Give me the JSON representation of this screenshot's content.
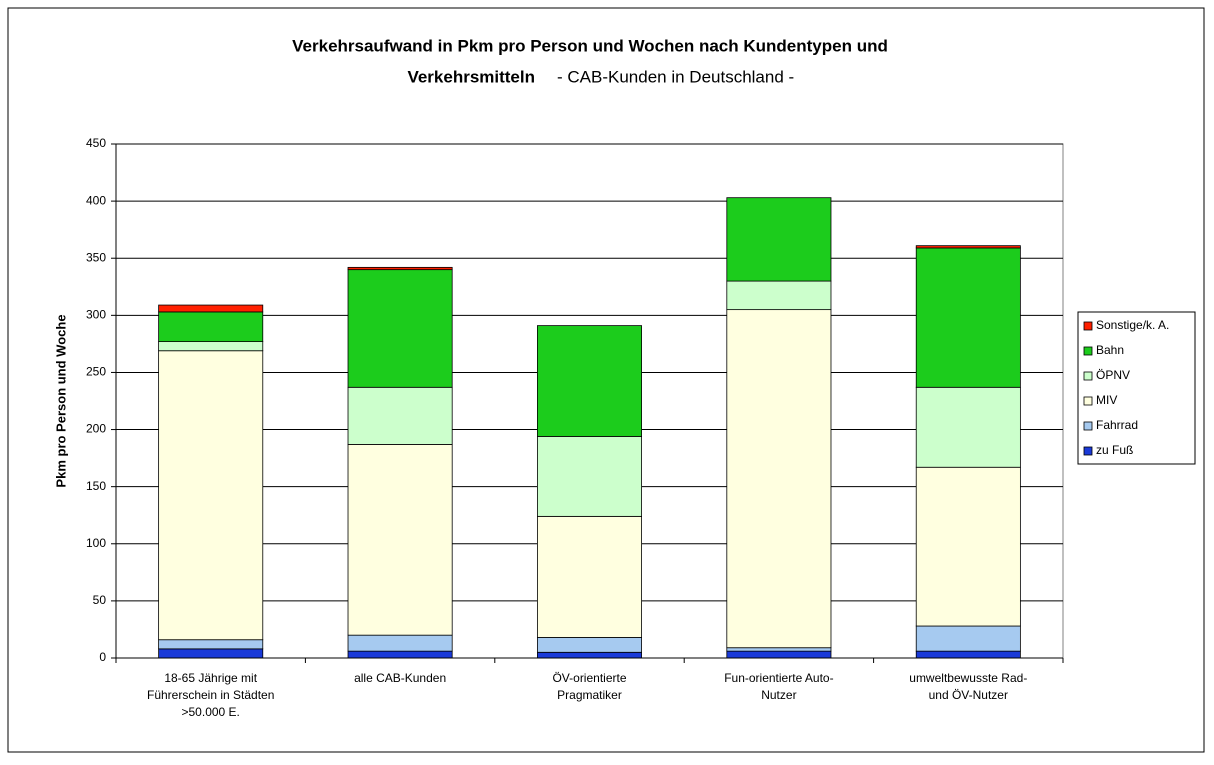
{
  "chart_data": {
    "type": "stacked_bar",
    "title": [
      "Verkehrsaufwand in Pkm pro Person und Wochen nach Kundentypen und",
      "Verkehrsmitteln"
    ],
    "subtitle": "- CAB-Kunden in Deutschland -",
    "y_label": "Pkm pro Person und Woche",
    "categories": [
      [
        "18-65 Jährige mit",
        "Führerschein in Städten",
        ">50.000 E."
      ],
      [
        "alle CAB-Kunden"
      ],
      [
        "ÖV-orientierte",
        "Pragmatiker"
      ],
      [
        "Fun-orientierte Auto-",
        "Nutzer"
      ],
      [
        "umweltbewusste Rad-",
        "und ÖV-Nutzer"
      ]
    ],
    "series": [
      {
        "name": "zu Fuß",
        "color": "#1a3ad8",
        "values": [
          8,
          6,
          5,
          6,
          6
        ]
      },
      {
        "name": "Fahrrad",
        "color": "#a6caf0",
        "values": [
          8,
          14,
          13,
          3,
          22
        ]
      },
      {
        "name": "MIV",
        "color": "#ffffe0",
        "values": [
          253,
          167,
          106,
          296,
          139
        ]
      },
      {
        "name": "ÖPNV",
        "color": "#ccffcc",
        "values": [
          8,
          50,
          70,
          25,
          70
        ]
      },
      {
        "name": "Bahn",
        "color": "#1ccc1c",
        "values": [
          26,
          103,
          97,
          73,
          122
        ]
      },
      {
        "name": "Sonstige/k. A.",
        "color": "#ff2000",
        "values": [
          6,
          2,
          0,
          0,
          2
        ]
      }
    ],
    "ylim": [
      0,
      450
    ],
    "yticks": [
      0,
      50,
      100,
      150,
      200,
      250,
      300,
      350,
      400,
      450
    ],
    "grid": true,
    "legend": "right"
  }
}
